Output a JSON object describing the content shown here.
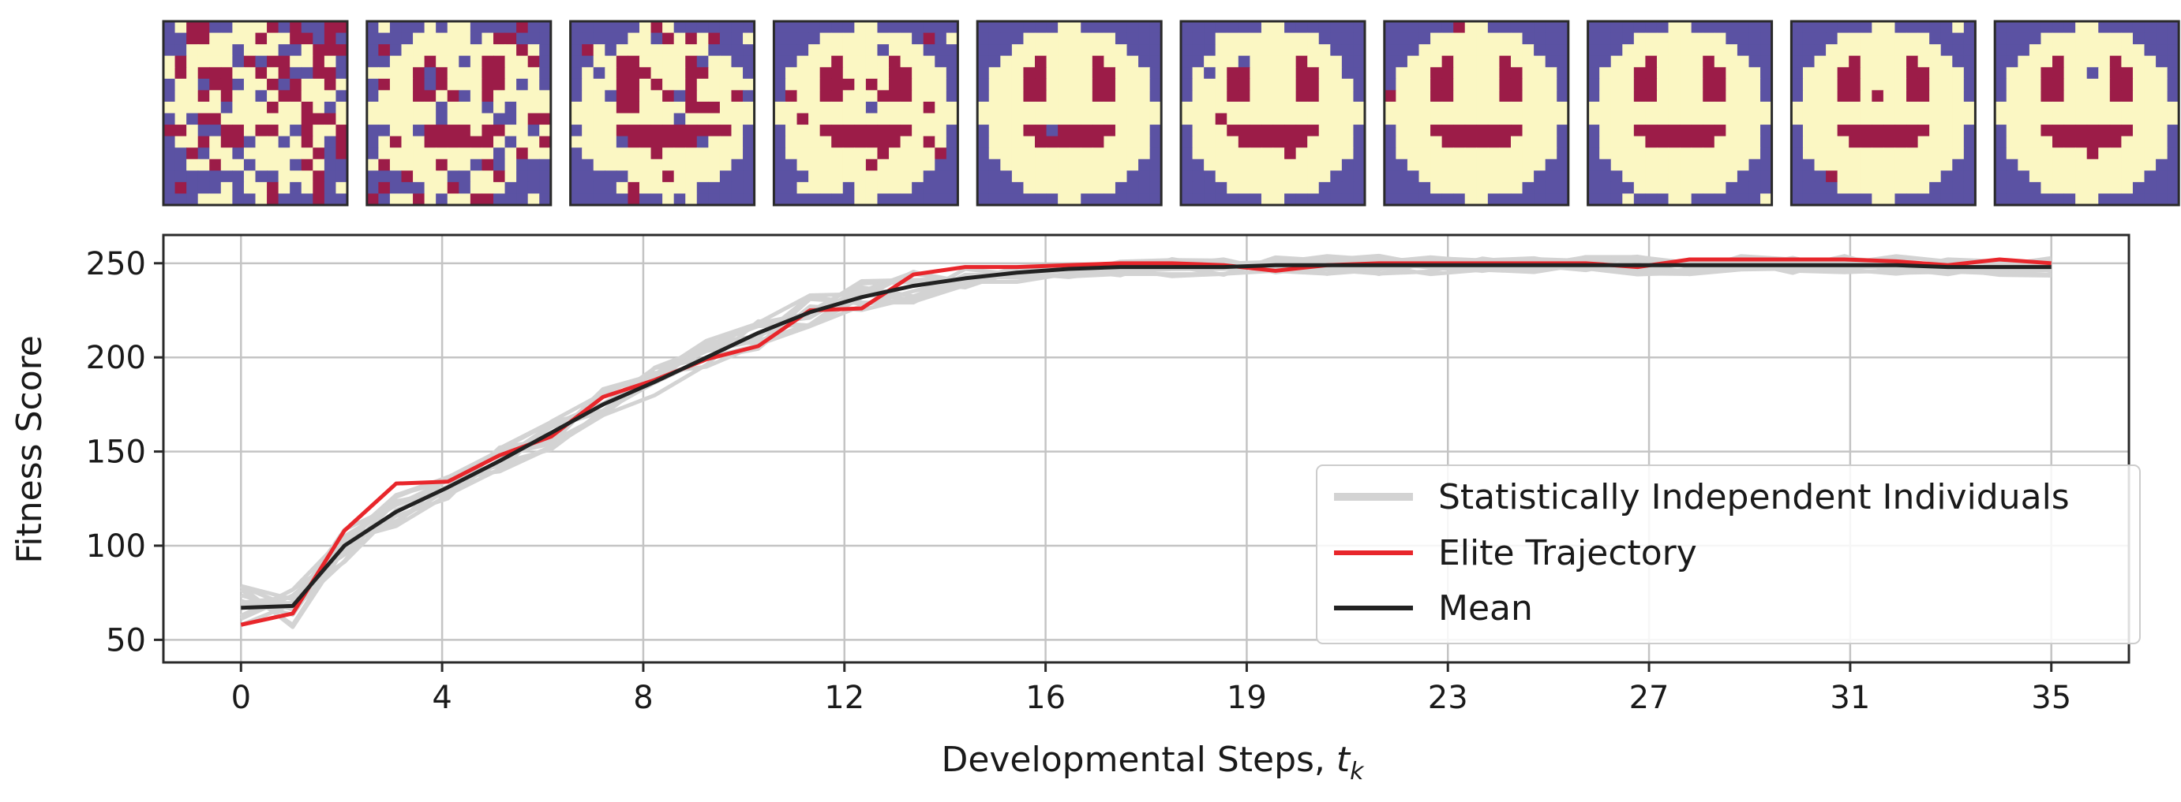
{
  "chart_data": {
    "type": "line",
    "title": "",
    "xlabel": "Developmental Steps, ",
    "xlabel_math": "t",
    "xlabel_sub": "k",
    "ylabel": "Fitness Score",
    "x_tick_labels": [
      "0",
      "4",
      "8",
      "12",
      "16",
      "19",
      "23",
      "27",
      "31",
      "35"
    ],
    "y_ticks": [
      50,
      100,
      150,
      200,
      250
    ],
    "xlim": [
      -1.5,
      36.5
    ],
    "ylim": [
      38,
      265
    ],
    "grid": true,
    "legend_position": "lower-right",
    "colors": {
      "individuals": "#d3d3d3",
      "elite": "#e8262b",
      "mean": "#222222",
      "pattern_bg": "#5b52a3",
      "pattern_face": "#fbf7c3",
      "pattern_feature": "#9c1c48",
      "frame": "#2a2a2a",
      "grid": "#c4c4c4"
    },
    "x": [
      0,
      1,
      2,
      3,
      4,
      5,
      6,
      7,
      8,
      9,
      10,
      11,
      12,
      13,
      14,
      15,
      16,
      17,
      18,
      19,
      20,
      21,
      22,
      23,
      24,
      25,
      26,
      27,
      28,
      29,
      30,
      31,
      32,
      33,
      34,
      35
    ],
    "series": [
      {
        "name": "Mean",
        "values": [
          67,
          68,
          100,
          118,
          131,
          145,
          160,
          175,
          187,
          200,
          213,
          224,
          232,
          238,
          242,
          245,
          247,
          248,
          248,
          248,
          249,
          249,
          249,
          249,
          249,
          249,
          249,
          249,
          249,
          249,
          249,
          249,
          249,
          248,
          248,
          248
        ]
      },
      {
        "name": "Elite Trajectory",
        "values": [
          58,
          64,
          108,
          133,
          134,
          148,
          158,
          179,
          188,
          199,
          206,
          225,
          226,
          244,
          248,
          248,
          249,
          250,
          250,
          249,
          246,
          249,
          250,
          250,
          250,
          250,
          250,
          248,
          252,
          252,
          252,
          252,
          251,
          249,
          252,
          250
        ]
      }
    ],
    "individuals_name": "Statistically Independent Individuals",
    "individuals_count": 12,
    "snapshot_steps": [
      0,
      4,
      8,
      12,
      16,
      19,
      23,
      27,
      31,
      35
    ]
  }
}
